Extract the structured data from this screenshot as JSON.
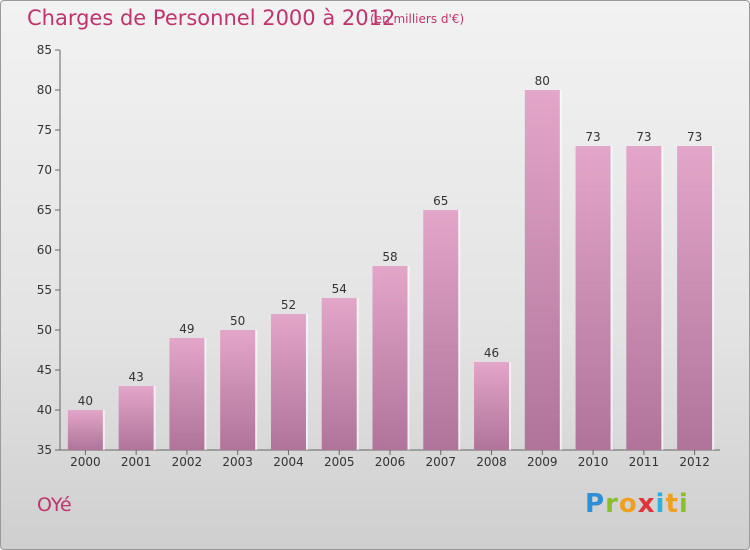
{
  "header": {
    "title": "Charges de Personnel 2000 à 2012",
    "subtitle": "(en milliers d'€)"
  },
  "footer": {
    "town": "OYé",
    "logo": [
      "P",
      "r",
      "o",
      "x",
      "i",
      "t",
      "i"
    ]
  },
  "colors": {
    "bar_top": "#e3a6c9",
    "bar_bottom": "#b0739a",
    "title": "#c0336e",
    "axis": "#666666"
  },
  "chart_data": {
    "type": "bar",
    "title": "Charges de Personnel 2000 à 2012",
    "subtitle": "(en milliers d'€)",
    "categories": [
      "2000",
      "2001",
      "2002",
      "2003",
      "2004",
      "2005",
      "2006",
      "2007",
      "2008",
      "2009",
      "2010",
      "2011",
      "2012"
    ],
    "values": [
      40,
      43,
      49,
      50,
      52,
      54,
      58,
      65,
      46,
      80,
      73,
      73,
      73
    ],
    "ylim": [
      35,
      85
    ],
    "yticks": [
      35,
      40,
      45,
      50,
      55,
      60,
      65,
      70,
      75,
      80,
      85
    ],
    "grid": false,
    "data_labels": true
  }
}
